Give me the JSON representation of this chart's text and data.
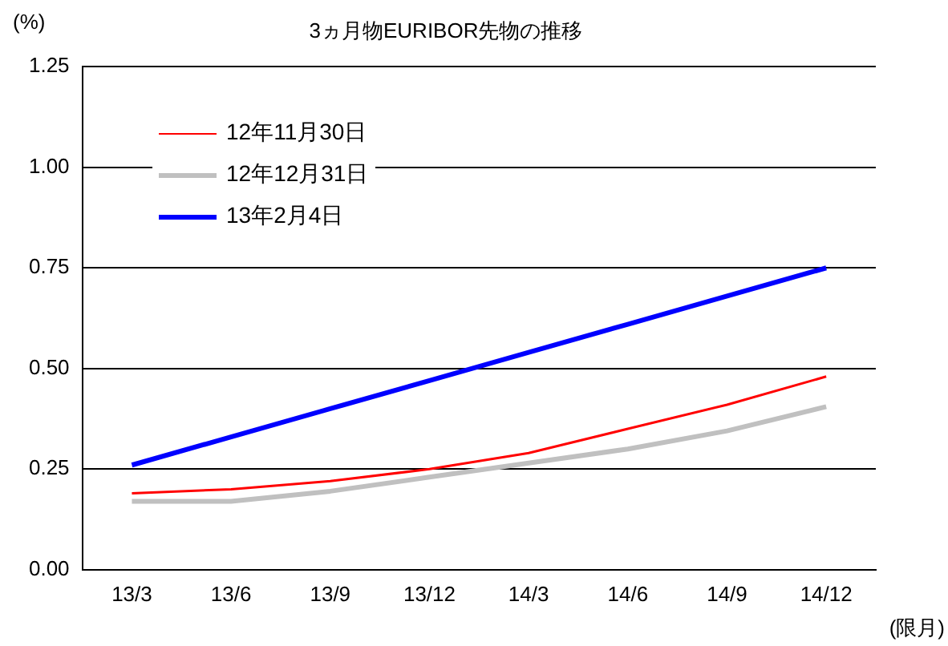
{
  "chart_data": {
    "type": "line",
    "title": "3ヵ月物EURIBOR先物の推移",
    "ylabel": "(%)",
    "xlabel": "(限月)",
    "categories": [
      "13/3",
      "13/6",
      "13/9",
      "13/12",
      "14/3",
      "14/6",
      "14/9",
      "14/12"
    ],
    "series": [
      {
        "name": "12年11月30日",
        "color": "#ff0000",
        "values": [
          0.19,
          0.2,
          0.22,
          0.25,
          0.29,
          0.35,
          0.41,
          0.48
        ]
      },
      {
        "name": "12年12月31日",
        "color": "#c0c0c0",
        "values": [
          0.17,
          0.17,
          0.195,
          0.23,
          0.265,
          0.3,
          0.345,
          0.405
        ]
      },
      {
        "name": "13年2月4日",
        "color": "#0000ff",
        "values": [
          0.26,
          0.33,
          0.4,
          0.47,
          0.54,
          0.61,
          0.68,
          0.75
        ]
      }
    ],
    "ylim": [
      0,
      1.25
    ],
    "yticks": [
      {
        "value": 0,
        "label": "0.00"
      },
      0.25,
      {
        "value": 0.5,
        "label": "0.50"
      },
      0.75,
      {
        "value": 1,
        "label": "1.00"
      },
      1.25
    ],
    "grid": "y",
    "legend": "top left",
    "marker": "none",
    "line_style": "solid"
  }
}
